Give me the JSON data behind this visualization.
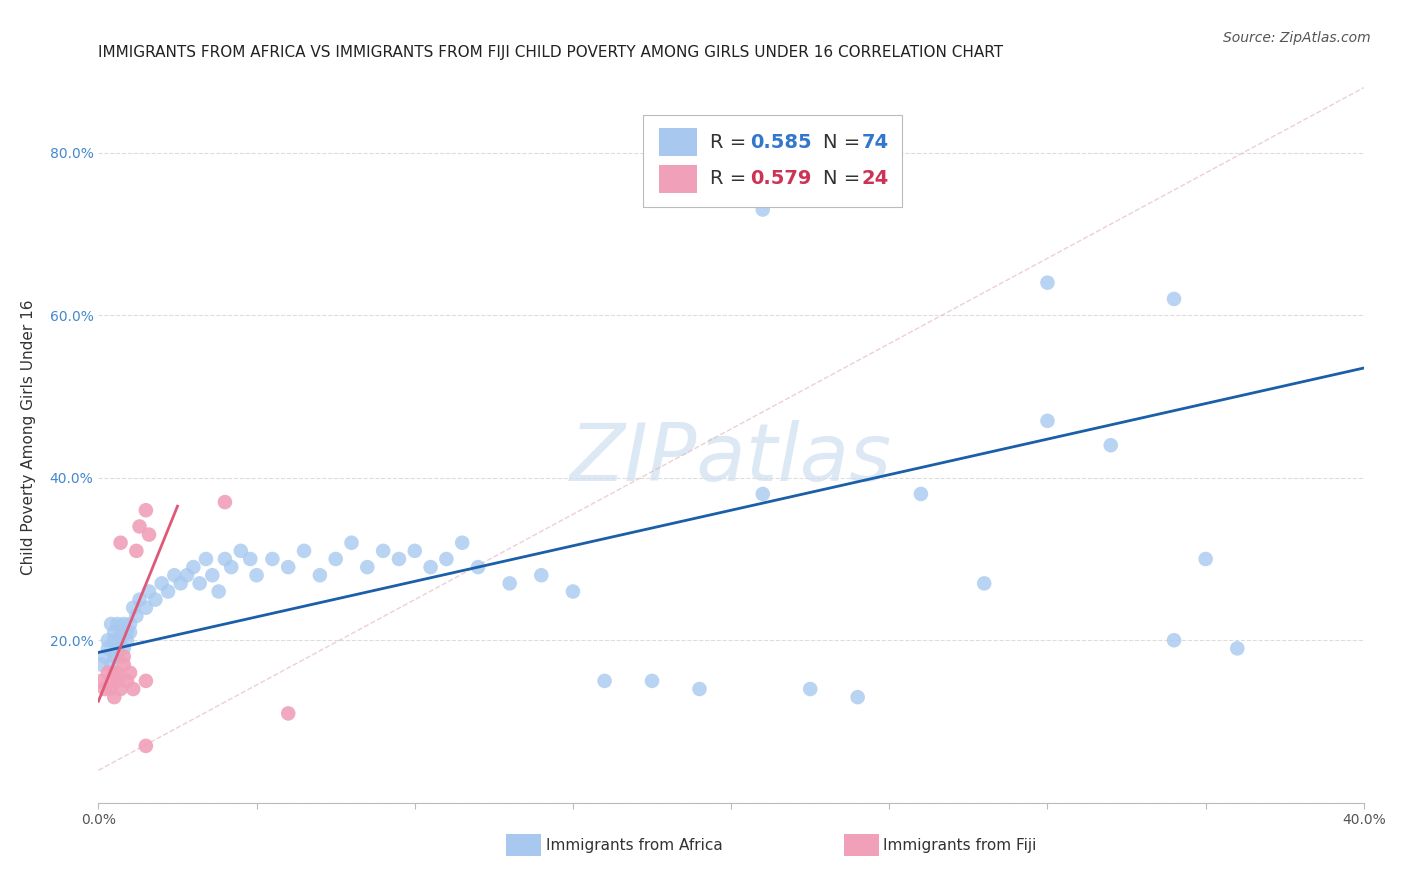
{
  "title": "IMMIGRANTS FROM AFRICA VS IMMIGRANTS FROM FIJI CHILD POVERTY AMONG GIRLS UNDER 16 CORRELATION CHART",
  "source": "Source: ZipAtlas.com",
  "ylabel": "Child Poverty Among Girls Under 16",
  "xlim": [
    0.0,
    0.4
  ],
  "ylim": [
    0.0,
    0.9
  ],
  "xticks": [
    0.0,
    0.05,
    0.1,
    0.15,
    0.2,
    0.25,
    0.3,
    0.35,
    0.4
  ],
  "yticks": [
    0.0,
    0.2,
    0.4,
    0.6,
    0.8
  ],
  "xtick_labels": [
    "0.0%",
    "",
    "",
    "",
    "",
    "",
    "",
    "",
    "40.0%"
  ],
  "ytick_labels": [
    "",
    "20.0%",
    "40.0%",
    "60.0%",
    "80.0%"
  ],
  "africa_color": "#a8c8f0",
  "africa_line_color": "#1a5fa8",
  "fiji_color": "#f0a0b8",
  "fiji_line_color": "#e05878",
  "watermark": "ZIPatlas",
  "background_color": "#ffffff",
  "grid_color": "#dddddd",
  "africa_x": [
    0.001,
    0.002,
    0.003,
    0.003,
    0.004,
    0.004,
    0.005,
    0.005,
    0.005,
    0.006,
    0.006,
    0.006,
    0.007,
    0.007,
    0.008,
    0.008,
    0.009,
    0.009,
    0.01,
    0.01,
    0.011,
    0.012,
    0.013,
    0.015,
    0.016,
    0.018,
    0.02,
    0.022,
    0.024,
    0.026,
    0.028,
    0.03,
    0.032,
    0.034,
    0.036,
    0.038,
    0.04,
    0.042,
    0.045,
    0.048,
    0.05,
    0.055,
    0.06,
    0.065,
    0.07,
    0.075,
    0.08,
    0.085,
    0.09,
    0.095,
    0.1,
    0.105,
    0.11,
    0.115,
    0.12,
    0.13,
    0.14,
    0.15,
    0.16,
    0.175,
    0.19,
    0.21,
    0.225,
    0.24,
    0.26,
    0.28,
    0.3,
    0.32,
    0.34,
    0.36,
    0.21,
    0.3,
    0.34,
    0.35
  ],
  "africa_y": [
    0.17,
    0.18,
    0.19,
    0.2,
    0.17,
    0.22,
    0.18,
    0.2,
    0.21,
    0.19,
    0.22,
    0.18,
    0.21,
    0.2,
    0.22,
    0.19,
    0.21,
    0.2,
    0.22,
    0.21,
    0.24,
    0.23,
    0.25,
    0.24,
    0.26,
    0.25,
    0.27,
    0.26,
    0.28,
    0.27,
    0.28,
    0.29,
    0.27,
    0.3,
    0.28,
    0.26,
    0.3,
    0.29,
    0.31,
    0.3,
    0.28,
    0.3,
    0.29,
    0.31,
    0.28,
    0.3,
    0.32,
    0.29,
    0.31,
    0.3,
    0.31,
    0.29,
    0.3,
    0.32,
    0.29,
    0.27,
    0.28,
    0.26,
    0.15,
    0.15,
    0.14,
    0.38,
    0.14,
    0.13,
    0.38,
    0.27,
    0.47,
    0.44,
    0.2,
    0.19,
    0.73,
    0.64,
    0.62,
    0.3
  ],
  "fiji_x": [
    0.001,
    0.002,
    0.003,
    0.004,
    0.004,
    0.005,
    0.005,
    0.006,
    0.006,
    0.007,
    0.007,
    0.008,
    0.008,
    0.009,
    0.01,
    0.011,
    0.012,
    0.013,
    0.015,
    0.016,
    0.015,
    0.04,
    0.015,
    0.06
  ],
  "fiji_y": [
    0.15,
    0.14,
    0.16,
    0.14,
    0.15,
    0.16,
    0.13,
    0.15,
    0.16,
    0.14,
    0.32,
    0.17,
    0.18,
    0.15,
    0.16,
    0.14,
    0.31,
    0.34,
    0.15,
    0.33,
    0.36,
    0.37,
    0.07,
    0.11
  ],
  "africa_line_x0": 0.0,
  "africa_line_x1": 0.4,
  "africa_line_y0": 0.185,
  "africa_line_y1": 0.535,
  "fiji_line_x0": 0.0,
  "fiji_line_x1": 0.025,
  "fiji_line_y0": 0.125,
  "fiji_line_y1": 0.365,
  "ref_line_x0": 0.0,
  "ref_line_x1": 0.4,
  "ref_line_y0": 0.04,
  "ref_line_y1": 0.88,
  "title_fontsize": 11,
  "axis_label_fontsize": 11,
  "tick_fontsize": 10,
  "source_fontsize": 10
}
